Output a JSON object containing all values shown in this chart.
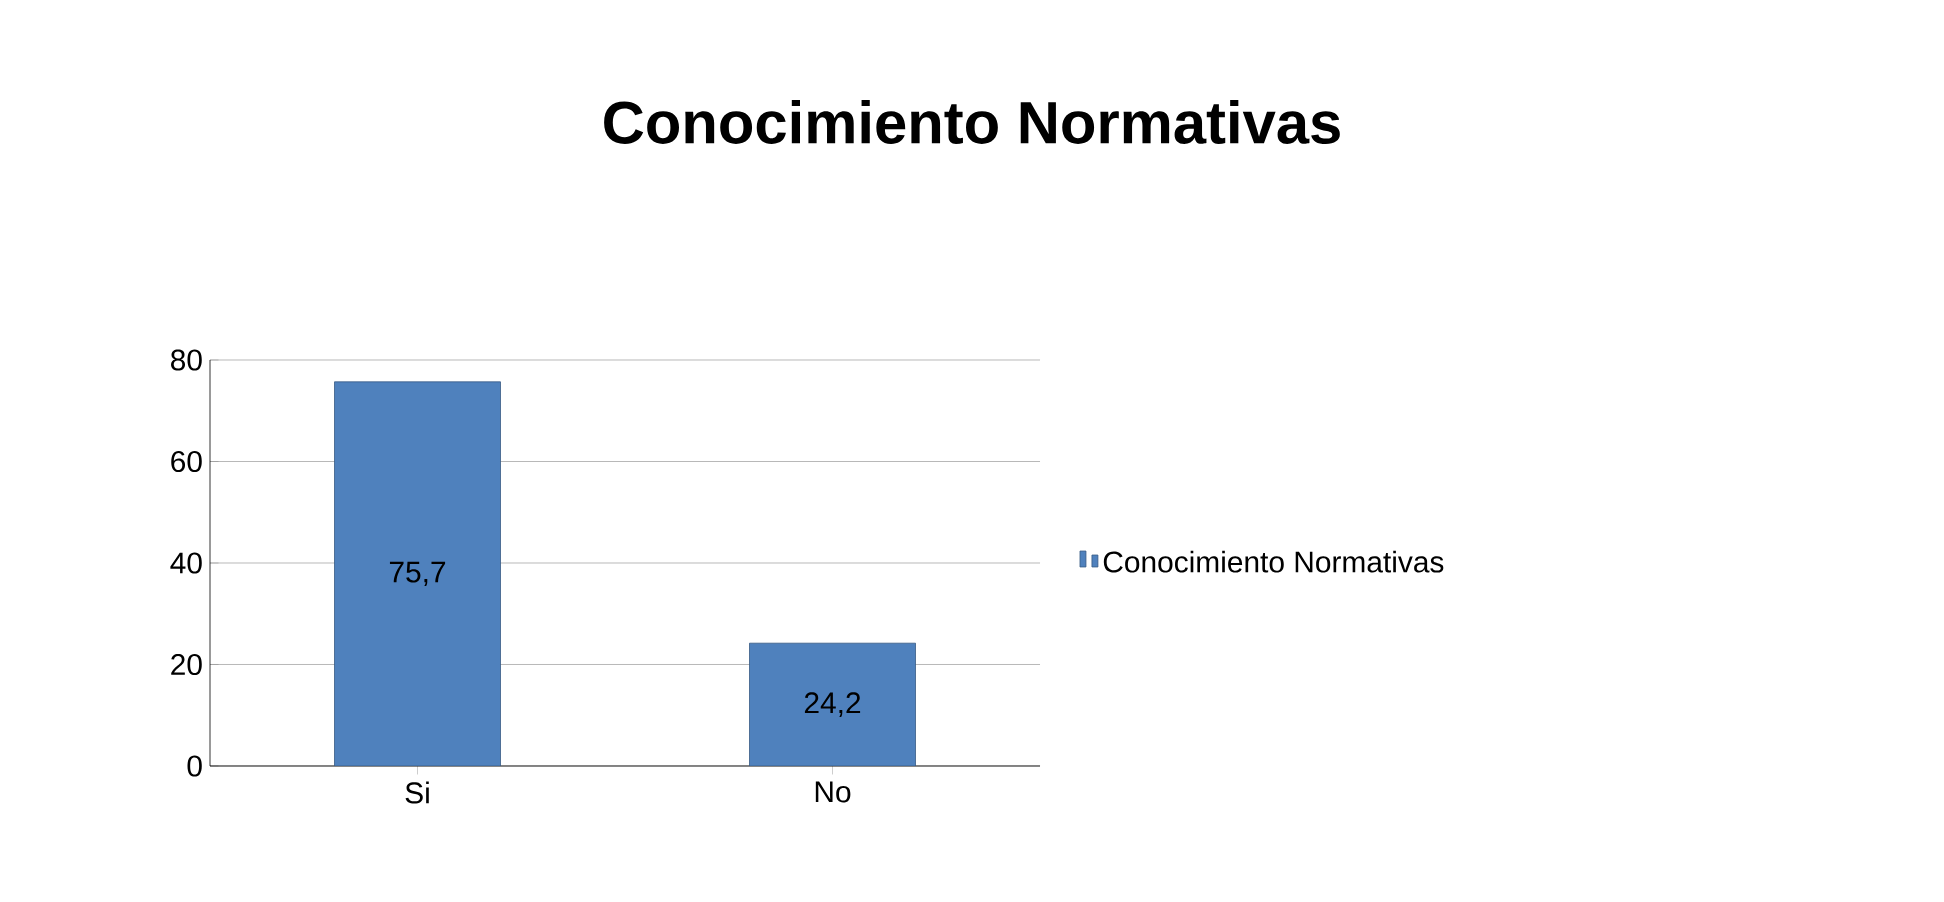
{
  "chart_data": {
    "type": "bar",
    "title": "Conocimiento Normativas",
    "categories": [
      "Si",
      "No"
    ],
    "series": [
      {
        "name": "Conocimiento Normativas",
        "color": "#4f81bd",
        "values": [
          75.7,
          24.2
        ],
        "value_labels": [
          "75,7",
          "24,2"
        ]
      }
    ],
    "ylim": [
      0,
      80
    ],
    "yticks": [
      0,
      20,
      40,
      60,
      80
    ],
    "grid": "y",
    "legend": "right"
  }
}
